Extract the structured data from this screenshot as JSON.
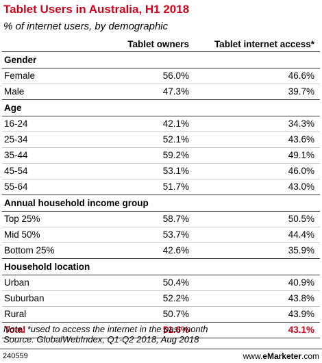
{
  "title": "Tablet Users in Australia, H1 2018",
  "subtitle": "% of internet users, by demographic",
  "columns": [
    "Tablet owners",
    "Tablet internet access*"
  ],
  "chart_data": {
    "type": "table",
    "title": "Tablet Users in Australia, H1 2018",
    "subtitle": "% of internet users, by demographic",
    "columns": [
      "Tablet owners",
      "Tablet internet access*"
    ],
    "groups": [
      {
        "name": "Gender",
        "rows": [
          {
            "label": "Female",
            "values": [
              "56.0%",
              "46.6%"
            ]
          },
          {
            "label": "Male",
            "values": [
              "47.3%",
              "39.7%"
            ]
          }
        ]
      },
      {
        "name": "Age",
        "rows": [
          {
            "label": "16-24",
            "values": [
              "42.1%",
              "34.3%"
            ]
          },
          {
            "label": "25-34",
            "values": [
              "52.1%",
              "43.6%"
            ]
          },
          {
            "label": "35-44",
            "values": [
              "59.2%",
              "49.1%"
            ]
          },
          {
            "label": "45-54",
            "values": [
              "53.1%",
              "46.0%"
            ]
          },
          {
            "label": "55-64",
            "values": [
              "51.7%",
              "43.0%"
            ]
          }
        ]
      },
      {
        "name": "Annual household income group",
        "rows": [
          {
            "label": "Top 25%",
            "values": [
              "58.7%",
              "50.5%"
            ]
          },
          {
            "label": "Mid 50%",
            "values": [
              "53.7%",
              "44.4%"
            ]
          },
          {
            "label": "Bottom 25%",
            "values": [
              "42.6%",
              "35.9%"
            ]
          }
        ]
      },
      {
        "name": "Household location",
        "rows": [
          {
            "label": "Urban",
            "values": [
              "50.4%",
              "40.9%"
            ]
          },
          {
            "label": "Suburban",
            "values": [
              "52.2%",
              "43.8%"
            ]
          },
          {
            "label": "Rural",
            "values": [
              "50.7%",
              "43.9%"
            ]
          }
        ]
      }
    ],
    "total": {
      "label": "Total",
      "values": [
        "51.6%",
        "43.1%"
      ]
    },
    "accent_color": "#d0021b"
  },
  "note": "Note: *used to access the internet in the past month",
  "source": "Source: GlobalWebIndex, Q1-Q2 2018, Aug 2018",
  "footer": {
    "chart_id": "240559",
    "brand_prefix": "www.",
    "brand_name": "eMarketer",
    "brand_suffix": ".com"
  }
}
